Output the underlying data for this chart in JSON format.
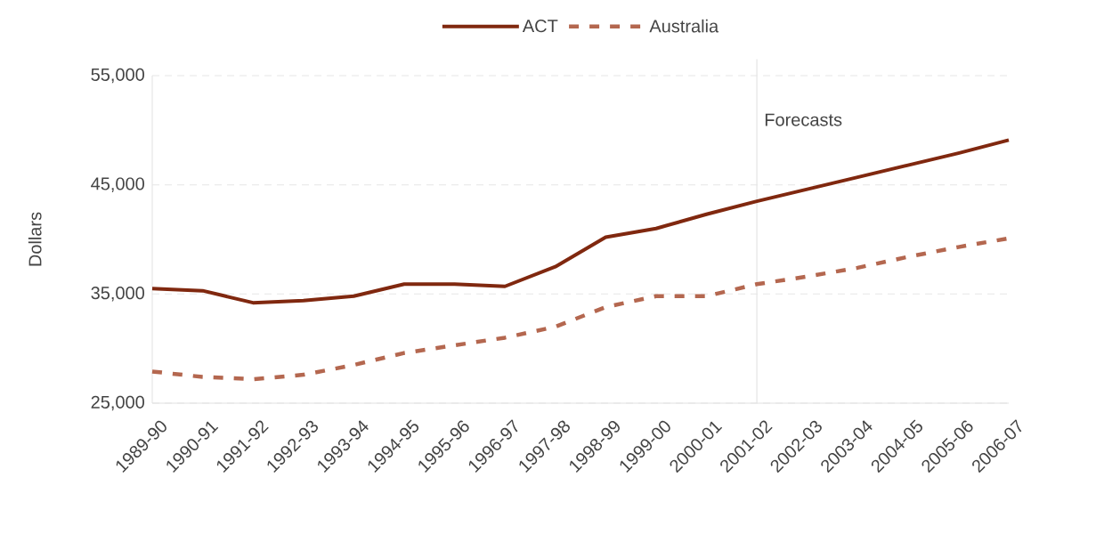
{
  "chart_data": {
    "type": "line",
    "ylabel": "Dollars",
    "categories": [
      "1989-90",
      "1990-91",
      "1991-92",
      "1992-93",
      "1993-94",
      "1994-95",
      "1995-96",
      "1996-97",
      "1997-98",
      "1998-99",
      "1999-00",
      "2000-01",
      "2001-02",
      "2002-03",
      "2003-04",
      "2004-05",
      "2005-06",
      "2006-07"
    ],
    "series": [
      {
        "name": "ACT",
        "color": "#80280f",
        "line_style": "solid",
        "values": [
          35500,
          35300,
          34200,
          34400,
          34800,
          35900,
          35900,
          35700,
          37500,
          40200,
          41000,
          42300,
          43500,
          44600,
          45700,
          46800,
          47900,
          49100
        ]
      },
      {
        "name": "Australia",
        "color": "#b4674f",
        "line_style": "dashed",
        "values": [
          27900,
          27400,
          27200,
          27600,
          28500,
          29600,
          30300,
          31000,
          32000,
          33800,
          34800,
          34800,
          35900,
          36600,
          37400,
          38400,
          39300,
          40100
        ]
      }
    ],
    "ylim": [
      25000,
      55000
    ],
    "yticks": [
      {
        "value": 25000,
        "label": "25,000"
      },
      {
        "value": 35000,
        "label": "35,000"
      },
      {
        "value": 45000,
        "label": "45,000"
      },
      {
        "value": 55000,
        "label": "55,000"
      }
    ],
    "grid": "y",
    "legend": "top",
    "ref_lines": [
      {
        "axis": "x",
        "value": "2001-02",
        "label": "Forecasts",
        "color": "#e4e4e4"
      }
    ]
  }
}
